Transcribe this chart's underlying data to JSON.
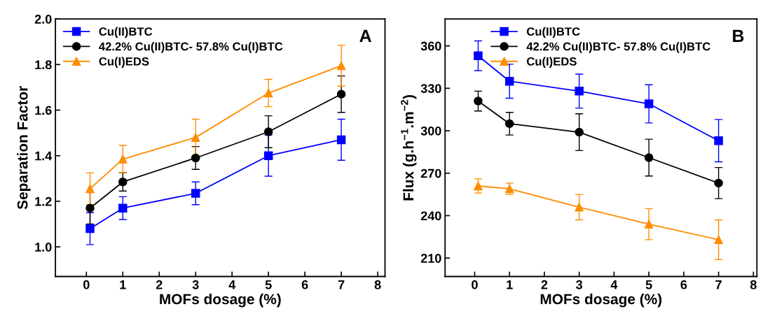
{
  "chart_data": [
    {
      "type": "line",
      "xlabel": "MOFs dosage (%)",
      "ylabel": "Separation Factor",
      "annotations": [
        "A"
      ],
      "x": [
        0.1,
        1,
        3,
        5,
        7
      ],
      "xlim": [
        -0.85,
        8.2
      ],
      "xticks": [
        0,
        1,
        2,
        3,
        4,
        5,
        6,
        7,
        8
      ],
      "ylim": [
        0.87,
        2.0
      ],
      "yticks": [
        {
          "value": 1.0,
          "label": "1.0"
        },
        1.2,
        1.4,
        1.6,
        1.8,
        {
          "value": 2.0,
          "label": "2.0"
        }
      ],
      "legend": "top left",
      "grid": false,
      "series": [
        {
          "name": "Cu(II)BTC",
          "color": "#0000ff",
          "marker": "square",
          "values": [
            1.08,
            1.17,
            1.235,
            1.4,
            1.47
          ],
          "errors": [
            0.07,
            0.05,
            0.05,
            0.09,
            0.09
          ]
        },
        {
          "name": "42.2% Cu(II)BTC- 57.8% Cu(I)BTC",
          "color": "#000000",
          "marker": "circle",
          "values": [
            1.17,
            1.285,
            1.39,
            1.505,
            1.67
          ],
          "errors": [
            0.07,
            0.04,
            0.05,
            0.07,
            0.08
          ]
        },
        {
          "name": "Cu(I)EDS",
          "color": "#ff8c00",
          "marker": "triangle",
          "values": [
            1.255,
            1.385,
            1.48,
            1.675,
            1.795
          ],
          "errors": [
            0.07,
            0.06,
            0.08,
            0.06,
            0.09
          ]
        }
      ]
    },
    {
      "type": "line",
      "xlabel": "MOFs dosage (%)",
      "ylabel": "Flux (g.h$^{−1}$.m$^{−2}$)",
      "annotations": [
        "B"
      ],
      "x": [
        0.1,
        1,
        3,
        5,
        7
      ],
      "xlim": [
        -0.85,
        8.1
      ],
      "xticks": [
        0,
        1,
        2,
        3,
        4,
        5,
        6,
        7,
        8
      ],
      "ylim": [
        197,
        379
      ],
      "yticks": [
        210,
        240,
        270,
        300,
        330,
        360
      ],
      "legend": "top",
      "grid": false,
      "series": [
        {
          "name": "Cu(II)BTC",
          "color": "#0000ff",
          "marker": "square",
          "values": [
            353,
            335,
            328,
            319,
            293
          ],
          "errors": [
            10.5,
            12,
            12,
            13.5,
            15
          ]
        },
        {
          "name": "42.2% Cu(II)BTC- 57.8% Cu(I)BTC",
          "color": "#000000",
          "marker": "circle",
          "values": [
            321,
            305,
            299,
            281,
            263
          ],
          "errors": [
            7,
            8,
            13,
            13,
            11
          ]
        },
        {
          "name": "Cu(I)EDS",
          "color": "#ff8c00",
          "marker": "triangle",
          "values": [
            261,
            259,
            246,
            234,
            223
          ],
          "errors": [
            5,
            4,
            9,
            11,
            14
          ]
        }
      ]
    }
  ]
}
